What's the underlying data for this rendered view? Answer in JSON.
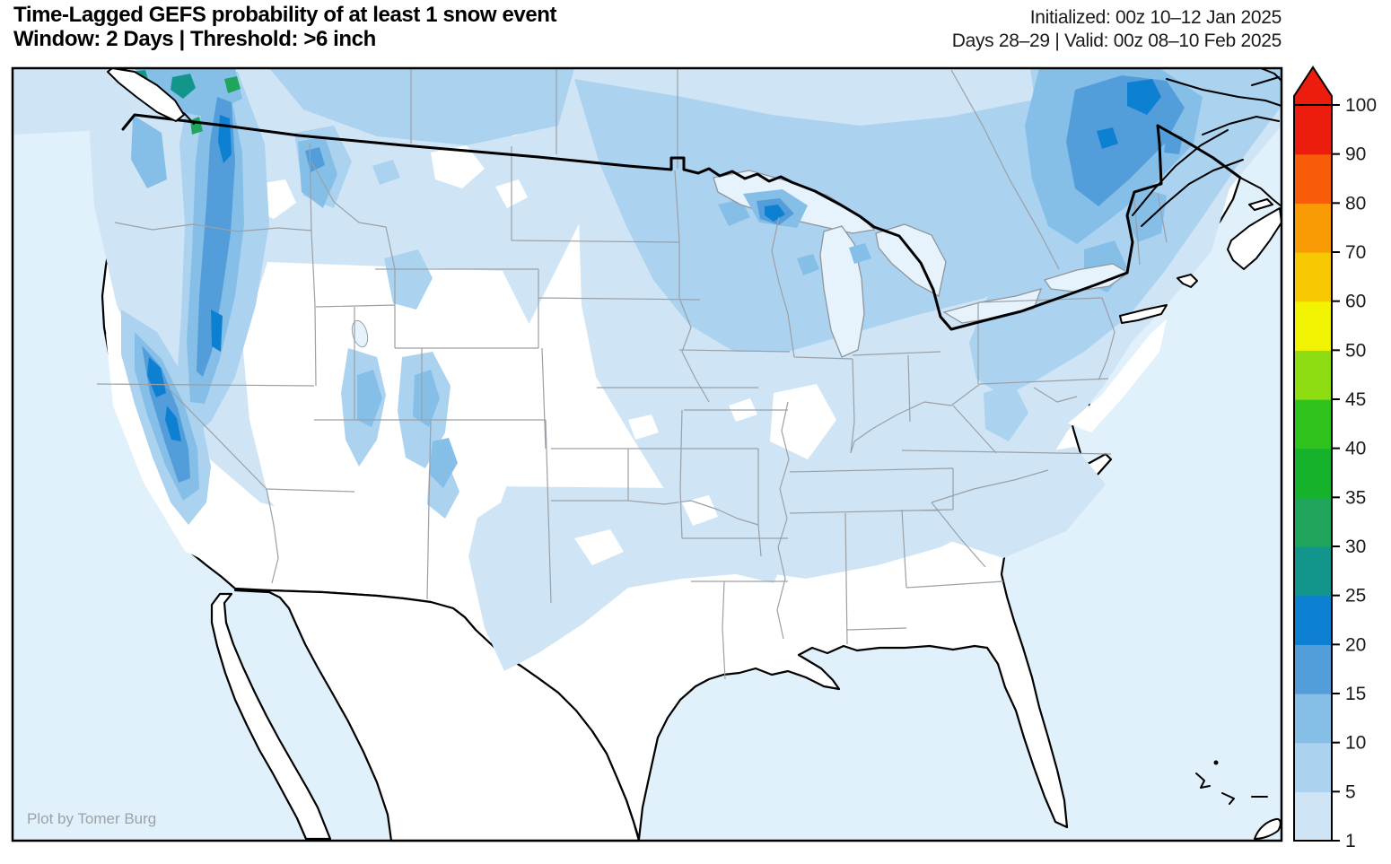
{
  "header": {
    "title": "Time-Lagged GEFS probability of at least 1 snow event",
    "subtitle": "Window: 2 Days | Threshold: >6 inch",
    "initialized": "Initialized: 00z 10–12 Jan 2025",
    "valid": "Days 28–29 | Valid: 00z 08–10 Feb 2025"
  },
  "map": {
    "attribution": "Plot by Tomer Burg",
    "region": "Contiguous United States with southern Canada and northern Mexico",
    "ocean_color": "#e1f1fb"
  },
  "chart_data": {
    "type": "heatmap",
    "title": "Probability (%) of at least 1 snow event >6 inch in a 2-day window",
    "legend_position": "right",
    "units": "%",
    "levels": [
      1,
      5,
      10,
      15,
      20,
      25,
      30,
      35,
      40,
      45,
      50,
      60,
      70,
      80,
      90,
      100
    ],
    "tick_labels": [
      "1",
      "5",
      "10",
      "15",
      "20",
      "25",
      "30",
      "35",
      "40",
      "45",
      "50",
      "60",
      "70",
      "80",
      "90",
      "100"
    ],
    "segment_colors": [
      "#cfe5f6",
      "#abd2ef",
      "#85bfe8",
      "#539eda",
      "#0d80d2",
      "#12968c",
      "#1fa55c",
      "#17b22b",
      "#2fc41d",
      "#8edc12",
      "#f2f203",
      "#f8c903",
      "#f89b04",
      "#f85c08",
      "#ec1c0e"
    ],
    "arrow_color": "#ec1c0e",
    "notable_features": [
      "10-25% band along Cascades and Sierra Nevada with isolated 25-45% spots near coastal British Columbia",
      "5-20% across northern plains, Upper Midwest, Great Lakes and Northeast",
      "15-25% band along the St. Lawrence valley in Quebec",
      "1-5% wash across central plains, Oklahoma, north Texas and the Carolinas",
      "Near-zero (white) across the Desert Southwest, Gulf Coast states and Florida"
    ]
  }
}
